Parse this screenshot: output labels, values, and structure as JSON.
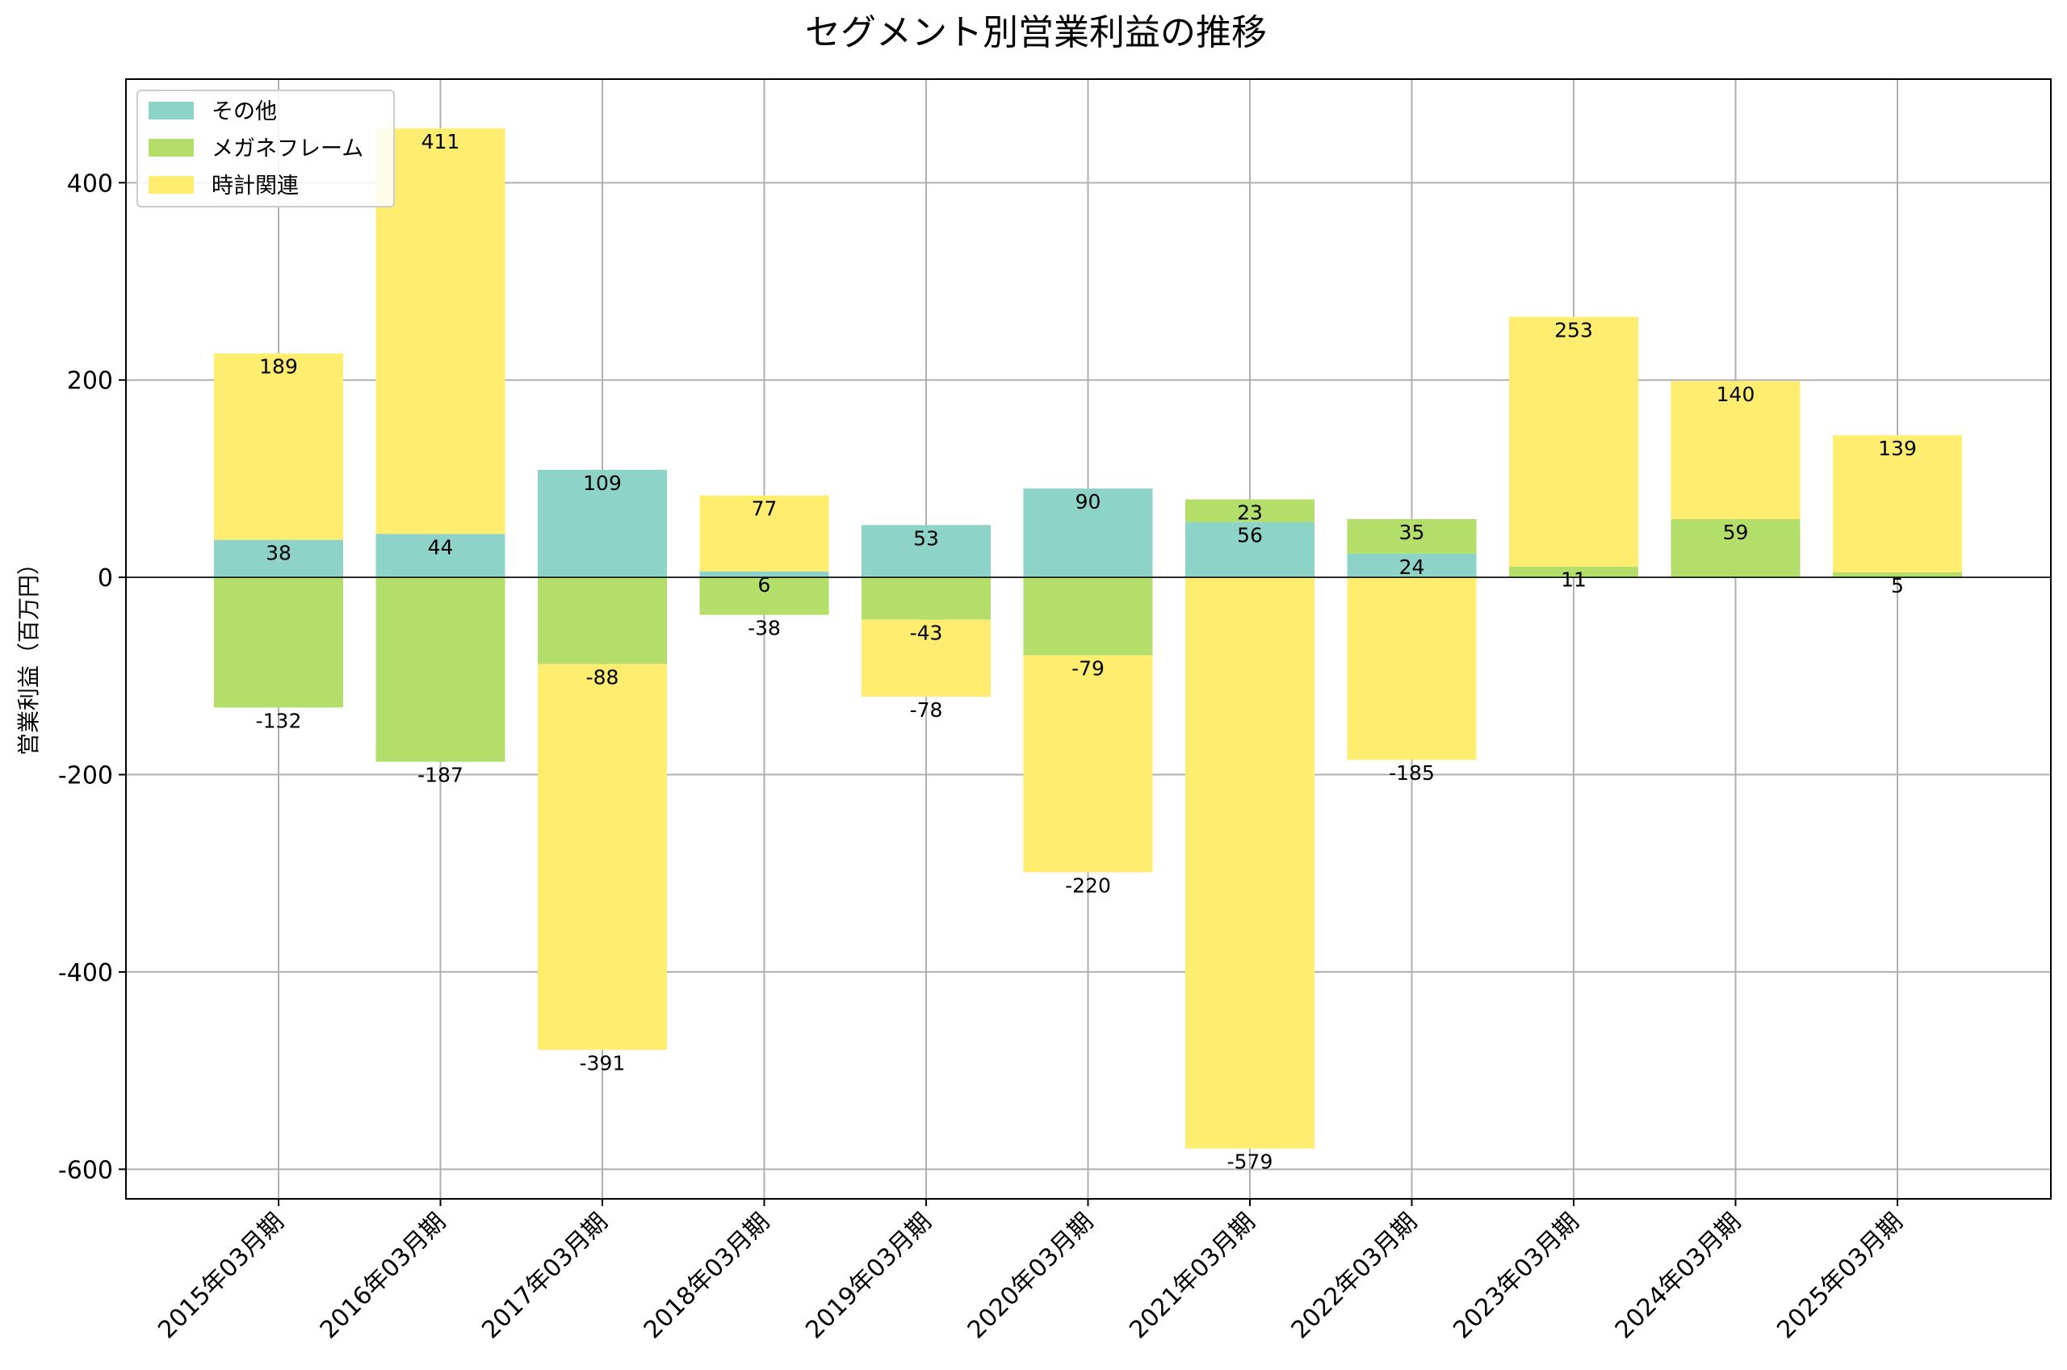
{
  "chart_data": {
    "type": "bar",
    "stacked": true,
    "title": "セグメント別営業利益の推移",
    "xlabel": "",
    "ylabel": "営業利益（百万円）",
    "ylim": [
      -630,
      505
    ],
    "yticks": [
      -600,
      -400,
      -200,
      0,
      200,
      400
    ],
    "ytick_labels": [
      "-600",
      "-400",
      "-200",
      "0",
      "200",
      "400"
    ],
    "grid": true,
    "legend_position": "top-left",
    "categories": [
      "2015年03月期",
      "2016年03月期",
      "2017年03月期",
      "2018年03月期",
      "2019年03月期",
      "2020年03月期",
      "2021年03月期",
      "2022年03月期",
      "2023年03月期",
      "2024年03月期",
      "2025年03月期"
    ],
    "series": [
      {
        "name": "その他",
        "color": "#8dd3c7",
        "values": [
          38,
          44,
          109,
          6,
          53,
          90,
          56,
          24,
          0,
          0,
          0
        ]
      },
      {
        "name": "メガネフレーム",
        "color": "#b3de69",
        "values": [
          -132,
          -187,
          -88,
          -38,
          -43,
          -79,
          23,
          35,
          11,
          59,
          5
        ]
      },
      {
        "name": "時計関連",
        "color": "#ffed6f",
        "values": [
          189,
          411,
          -391,
          77,
          -78,
          -220,
          -579,
          -185,
          253,
          140,
          139
        ]
      }
    ]
  }
}
